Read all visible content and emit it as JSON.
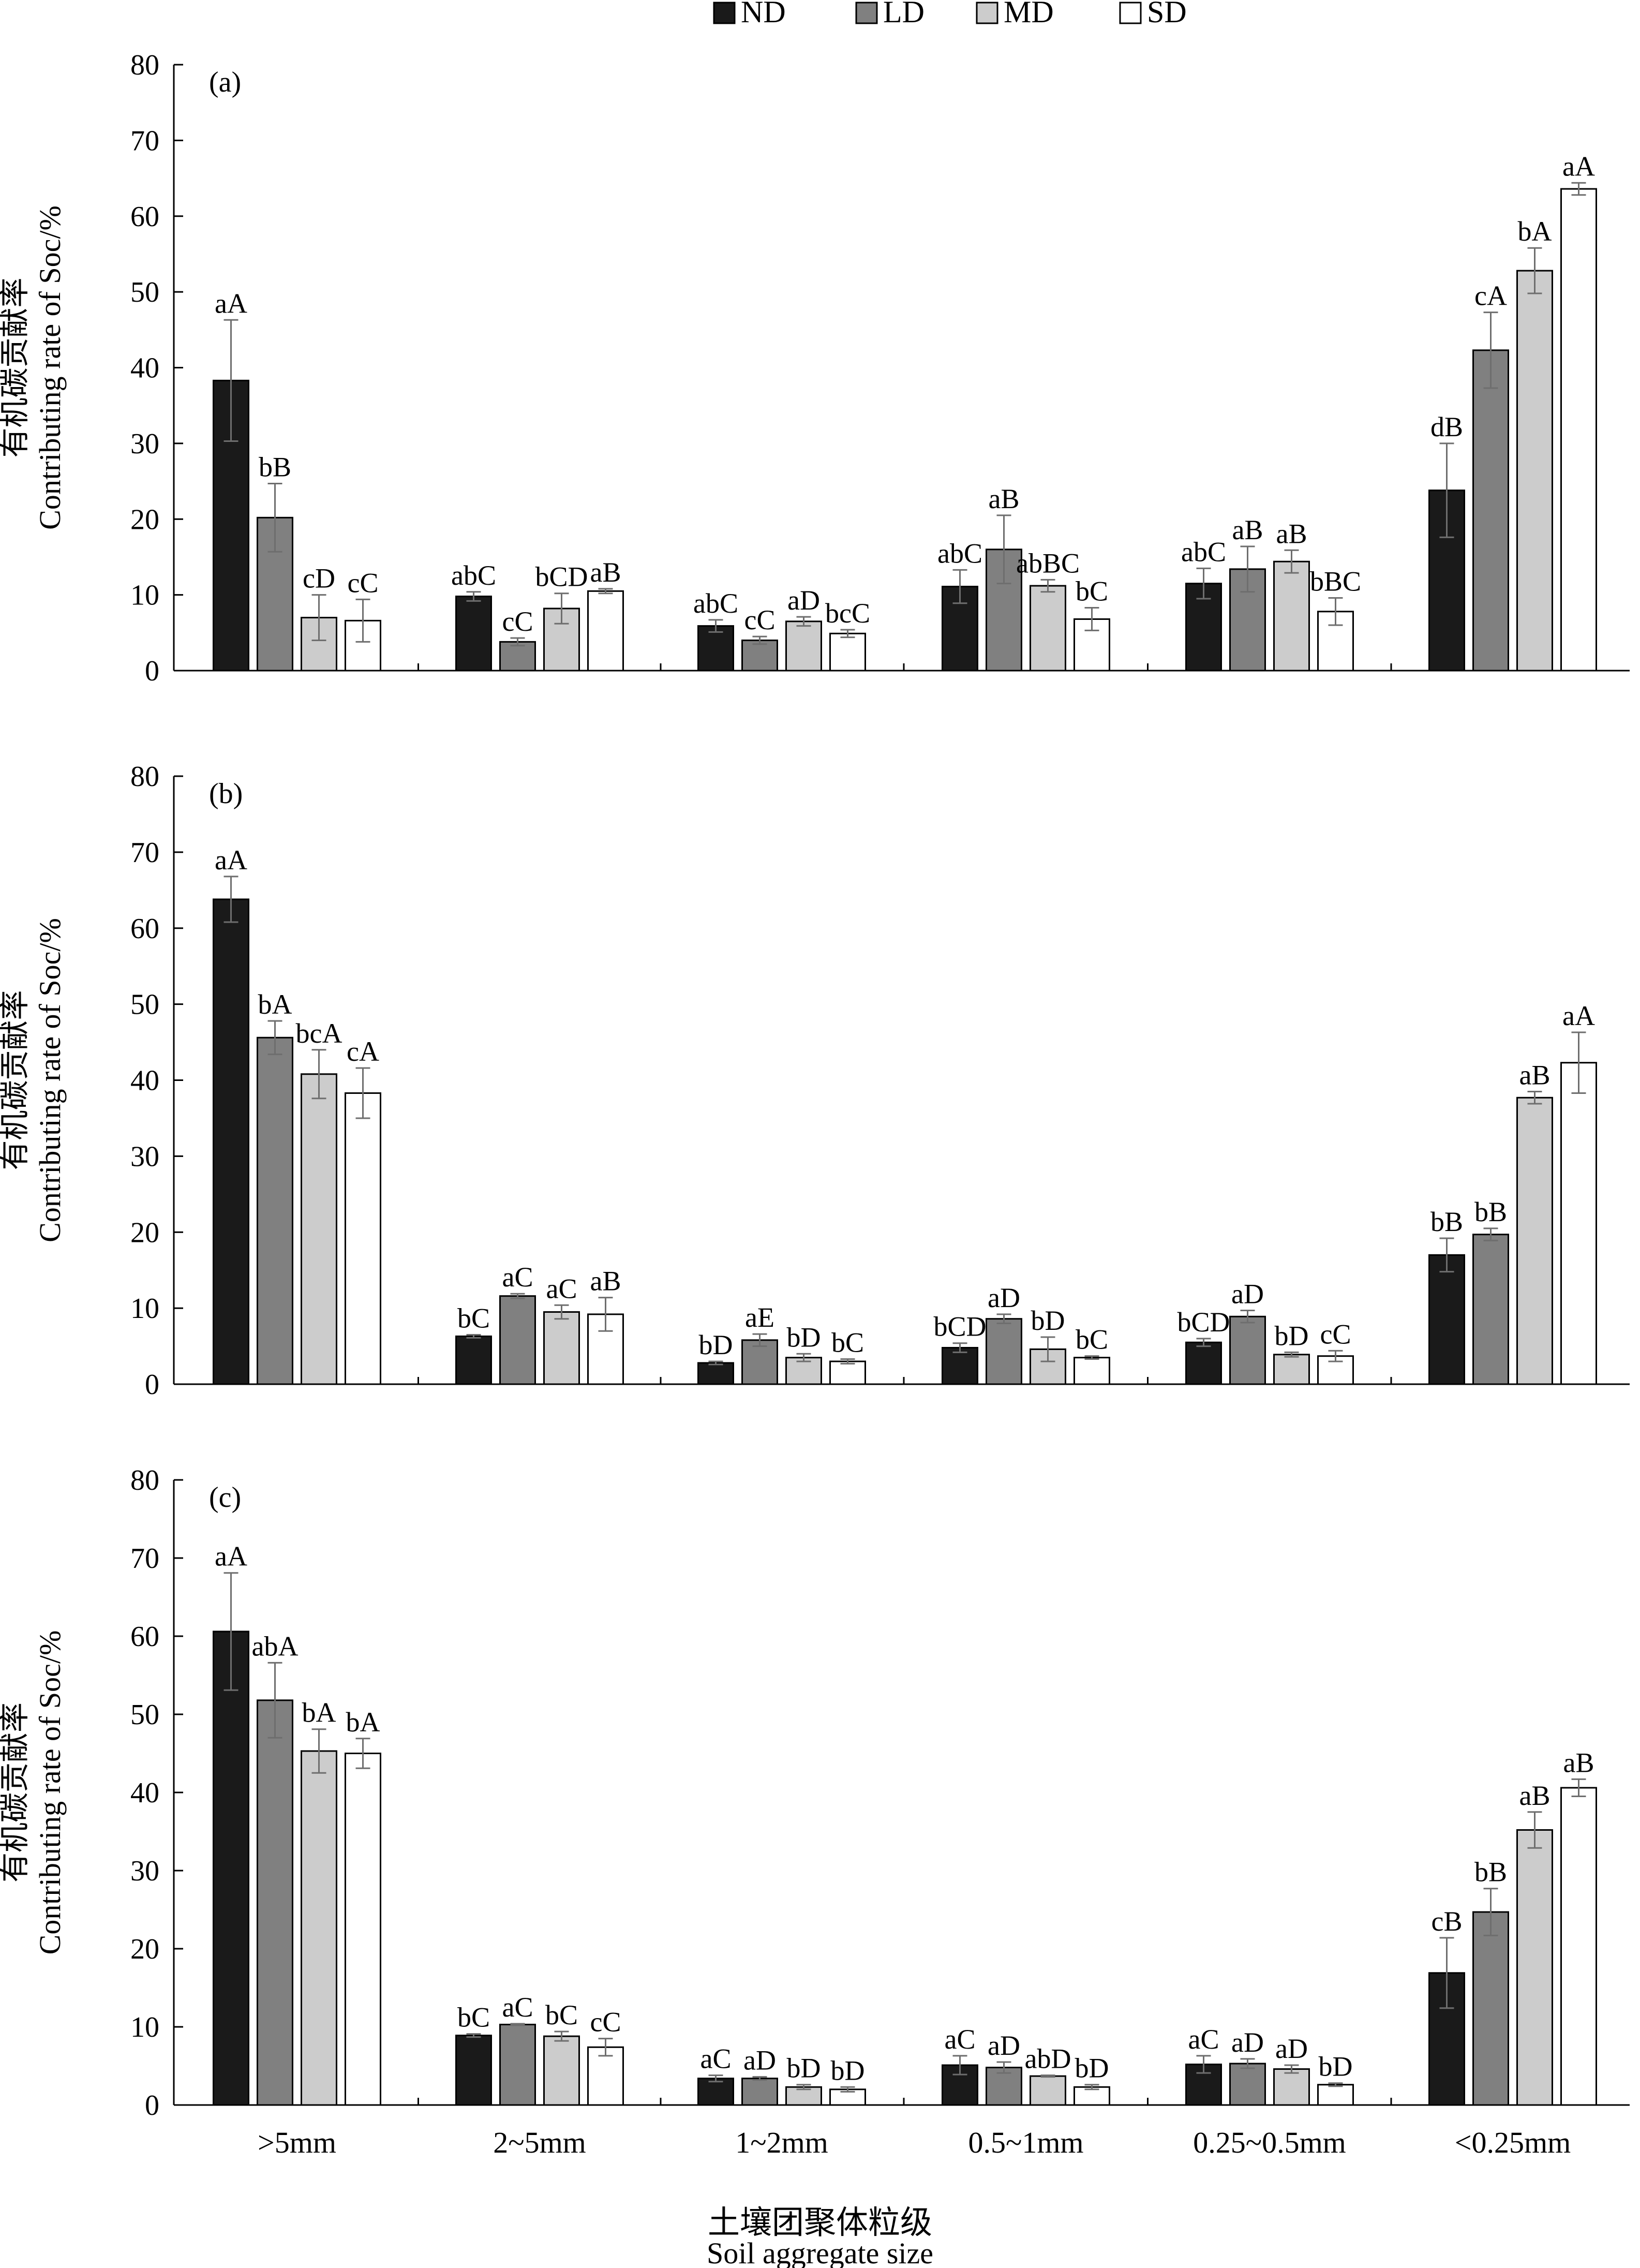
{
  "legend": [
    {
      "name": "ND",
      "color": "#1a1a1a"
    },
    {
      "name": "LD",
      "color": "#808080"
    },
    {
      "name": "MD",
      "color": "#cccccc"
    },
    {
      "name": "SD",
      "color": "#ffffff"
    }
  ],
  "xlabel_cn": "土壤团聚体粒级",
  "xlabel_en": "Soil aggregate size",
  "ylabel_cn": "有机碳贡献率",
  "ylabel_en": "Contributing rate of Soc/%",
  "chart_data": [
    {
      "type": "bar",
      "panel_label": "(a)",
      "categories": [
        ">5mm",
        "2~5mm",
        "1~2mm",
        "0.5~1mm",
        "0.25~0.5mm",
        "<0.25mm"
      ],
      "ylim": [
        0,
        80
      ],
      "yticks": [
        0,
        10,
        20,
        30,
        40,
        50,
        60,
        70,
        80
      ],
      "series": [
        {
          "name": "ND",
          "values": [
            38.3,
            9.8,
            5.9,
            11.1,
            11.5,
            23.8
          ],
          "errors": [
            8.0,
            0.6,
            0.8,
            2.2,
            2.0,
            6.2
          ],
          "labels": [
            "aA",
            "abC",
            "abC",
            "abC",
            "abC",
            "dB"
          ]
        },
        {
          "name": "LD",
          "values": [
            20.2,
            3.8,
            4.0,
            16.0,
            13.4,
            42.3
          ],
          "errors": [
            4.5,
            0.5,
            0.5,
            4.5,
            3.0,
            5.0
          ],
          "labels": [
            "bB",
            "cC",
            "cC",
            "aB",
            "aB",
            "cA"
          ]
        },
        {
          "name": "MD",
          "values": [
            7.0,
            8.2,
            6.5,
            11.2,
            14.4,
            52.8
          ],
          "errors": [
            3.0,
            2.0,
            0.6,
            0.8,
            1.5,
            3.0
          ],
          "labels": [
            "cD",
            "bCD",
            "aD",
            "abBC",
            "aB",
            "bA"
          ]
        },
        {
          "name": "SD",
          "values": [
            6.6,
            10.5,
            4.9,
            6.8,
            7.8,
            63.6
          ],
          "errors": [
            2.8,
            0.3,
            0.5,
            1.5,
            1.8,
            0.8
          ],
          "labels": [
            "cC",
            "aB",
            "bcC",
            "bC",
            "bBC",
            "aA"
          ]
        }
      ]
    },
    {
      "type": "bar",
      "panel_label": "(b)",
      "categories": [
        ">5mm",
        "2~5mm",
        "1~2mm",
        "0.5~1mm",
        "0.25~0.5mm",
        "<0.25mm"
      ],
      "ylim": [
        0,
        80
      ],
      "yticks": [
        0,
        10,
        20,
        30,
        40,
        50,
        60,
        70,
        80
      ],
      "series": [
        {
          "name": "ND",
          "values": [
            63.8,
            6.3,
            2.8,
            4.8,
            5.5,
            17.0
          ],
          "errors": [
            3.0,
            0.2,
            0.2,
            0.6,
            0.5,
            2.2
          ],
          "labels": [
            "aA",
            "bC",
            "bD",
            "bCD",
            "bCD",
            "bB"
          ]
        },
        {
          "name": "LD",
          "values": [
            45.6,
            11.6,
            5.8,
            8.6,
            8.9,
            19.7
          ],
          "errors": [
            2.2,
            0.3,
            0.8,
            0.6,
            0.8,
            0.8
          ],
          "labels": [
            "bA",
            "aC",
            "aE",
            "aD",
            "aD",
            "bB"
          ]
        },
        {
          "name": "MD",
          "values": [
            40.8,
            9.5,
            3.5,
            4.6,
            3.9,
            37.7
          ],
          "errors": [
            3.2,
            0.9,
            0.5,
            1.6,
            0.3,
            0.8
          ],
          "labels": [
            "bcA",
            "aC",
            "bD",
            "bD",
            "bD",
            "aB"
          ]
        },
        {
          "name": "SD",
          "values": [
            38.3,
            9.2,
            3.0,
            3.5,
            3.7,
            42.3
          ],
          "errors": [
            3.3,
            2.2,
            0.3,
            0.2,
            0.7,
            4.0
          ],
          "labels": [
            "cA",
            "aB",
            "bC",
            "bC",
            "cC",
            "aA"
          ]
        }
      ]
    },
    {
      "type": "bar",
      "panel_label": "(c)",
      "categories": [
        ">5mm",
        "2~5mm",
        "1~2mm",
        "0.5~1mm",
        "0.25~0.5mm",
        "<0.25mm"
      ],
      "ylim": [
        0,
        80
      ],
      "yticks": [
        0,
        10,
        20,
        30,
        40,
        50,
        60,
        70,
        80
      ],
      "series": [
        {
          "name": "ND",
          "values": [
            60.6,
            8.9,
            3.4,
            5.1,
            5.2,
            16.9
          ],
          "errors": [
            7.5,
            0.2,
            0.4,
            1.2,
            1.1,
            4.5
          ],
          "labels": [
            "aA",
            "bC",
            "aC",
            "aC",
            "aC",
            "cB"
          ]
        },
        {
          "name": "LD",
          "values": [
            51.8,
            10.3,
            3.4,
            4.8,
            5.3,
            24.7
          ],
          "errors": [
            4.8,
            0.1,
            0.2,
            0.7,
            0.6,
            3.0
          ],
          "labels": [
            "abA",
            "aC",
            "aD",
            "aD",
            "aD",
            "bB"
          ]
        },
        {
          "name": "MD",
          "values": [
            45.3,
            8.8,
            2.3,
            3.7,
            4.6,
            35.2
          ],
          "errors": [
            2.8,
            0.6,
            0.3,
            0.1,
            0.5,
            2.3
          ],
          "labels": [
            "bA",
            "bC",
            "bD",
            "abD",
            "aD",
            "aB"
          ]
        },
        {
          "name": "SD",
          "values": [
            45.0,
            7.4,
            2.0,
            2.3,
            2.6,
            40.6
          ],
          "errors": [
            1.9,
            1.1,
            0.3,
            0.3,
            0.2,
            1.1
          ],
          "labels": [
            "bA",
            "cC",
            "bD",
            "bD",
            "bD",
            "aB"
          ]
        }
      ]
    }
  ]
}
